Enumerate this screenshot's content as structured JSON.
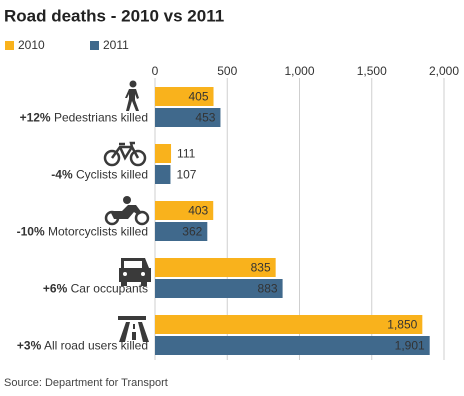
{
  "chart_data": {
    "type": "hbar",
    "title": "Road deaths - 2010 vs 2011",
    "categories": [
      "Pedestrians killed",
      "Cyclists killed",
      "Motorcyclists killed",
      "Car occupants",
      "All road users killed"
    ],
    "changes": [
      "+12%",
      "-4%",
      "-10%",
      "+6%",
      "+3%"
    ],
    "series": [
      {
        "name": "2010",
        "color": "#f9b21c",
        "values": [
          405,
          111,
          403,
          835,
          1850
        ],
        "value_labels": [
          "405",
          "111",
          "403",
          "835",
          "1,850"
        ]
      },
      {
        "name": "2011",
        "color": "#40698c",
        "values": [
          453,
          107,
          362,
          883,
          1901
        ],
        "value_labels": [
          "453",
          "107",
          "362",
          "883",
          "1,901"
        ]
      }
    ],
    "xlim": [
      0,
      2000
    ],
    "xticks": [
      0,
      500,
      {
        "value": 1000,
        "label": "1,000"
      },
      {
        "value": 1500,
        "label": "1,500"
      },
      {
        "value": 2000,
        "label": "2,000"
      }
    ],
    "grid": true,
    "source": "Source: Department for Transport"
  }
}
